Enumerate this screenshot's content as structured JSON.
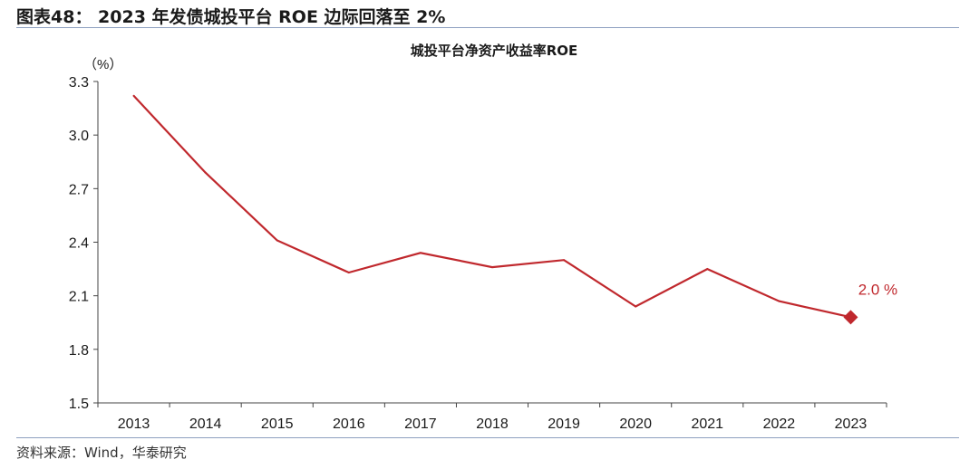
{
  "figure": {
    "title": "图表48：  2023 年发债城投平台 ROE 边际回落至 2%",
    "source": "资料来源：Wind，华泰研究"
  },
  "colors": {
    "line": "#c0282d",
    "axis": "#444444",
    "rule": "#8ea0c0"
  },
  "chart_data": {
    "type": "line",
    "title": "城投平台净资产收益率ROE",
    "ylabel": "（%）",
    "xlabel": "",
    "categories": [
      "2013",
      "2014",
      "2015",
      "2016",
      "2017",
      "2018",
      "2019",
      "2020",
      "2021",
      "2022",
      "2023"
    ],
    "series": [
      {
        "name": "",
        "values": [
          3.22,
          2.79,
          2.41,
          2.23,
          2.34,
          2.26,
          2.3,
          2.04,
          2.25,
          2.07,
          1.98
        ]
      }
    ],
    "ylim": [
      1.5,
      3.3
    ],
    "yticks": [
      "1.5",
      "1.8",
      "2.1",
      "2.4",
      "2.7",
      "3.0",
      "3.3"
    ],
    "grid": false,
    "annotation": {
      "text": "2.0 %",
      "category": "2023"
    },
    "last_point_marker": "diamond"
  }
}
